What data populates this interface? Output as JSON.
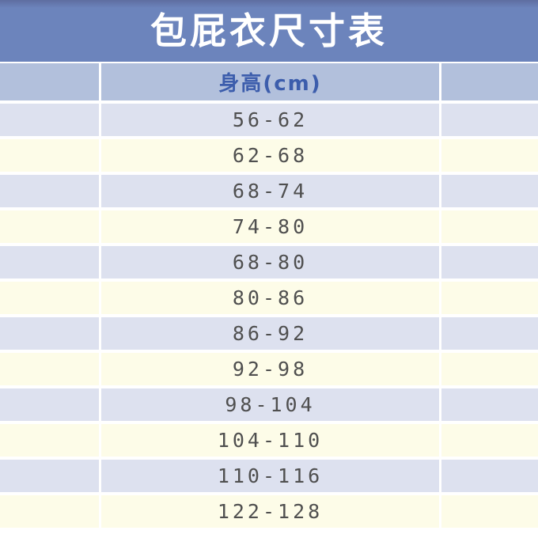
{
  "title": "包屁衣尺寸表",
  "table": {
    "header": {
      "height_label": "身高(cm)"
    },
    "rows": [
      {
        "height": "56-62"
      },
      {
        "height": "62-68"
      },
      {
        "height": "68-74"
      },
      {
        "height": "74-80"
      },
      {
        "height": "68-80"
      },
      {
        "height": "80-86"
      },
      {
        "height": "86-92"
      },
      {
        "height": "92-98"
      },
      {
        "height": "98-104"
      },
      {
        "height": "104-110"
      },
      {
        "height": "110-116"
      },
      {
        "height": "122-128"
      }
    ]
  },
  "colors": {
    "banner_blue": "#6c84bc",
    "header_bg": "#b2c0dc",
    "header_text": "#3c5dac",
    "row_lavender": "#dde1ef",
    "row_cream": "#fdfce8",
    "row_text": "#4f4f4f",
    "divider": "#ffffff"
  },
  "chart_data": {
    "type": "table",
    "title": "包屁衣尺寸表",
    "columns": [
      "",
      "身高(cm)",
      ""
    ],
    "rows": [
      [
        "",
        "56-62",
        ""
      ],
      [
        "",
        "62-68",
        ""
      ],
      [
        "",
        "68-74",
        ""
      ],
      [
        "",
        "74-80",
        ""
      ],
      [
        "",
        "68-80",
        ""
      ],
      [
        "",
        "80-86",
        ""
      ],
      [
        "",
        "86-92",
        ""
      ],
      [
        "",
        "92-98",
        ""
      ],
      [
        "",
        "98-104",
        ""
      ],
      [
        "",
        "104-110",
        ""
      ],
      [
        "",
        "110-116",
        ""
      ],
      [
        "",
        "122-128",
        ""
      ]
    ],
    "layout": "alternating row colors (lavender/cream), white dividers, title banner on top"
  }
}
